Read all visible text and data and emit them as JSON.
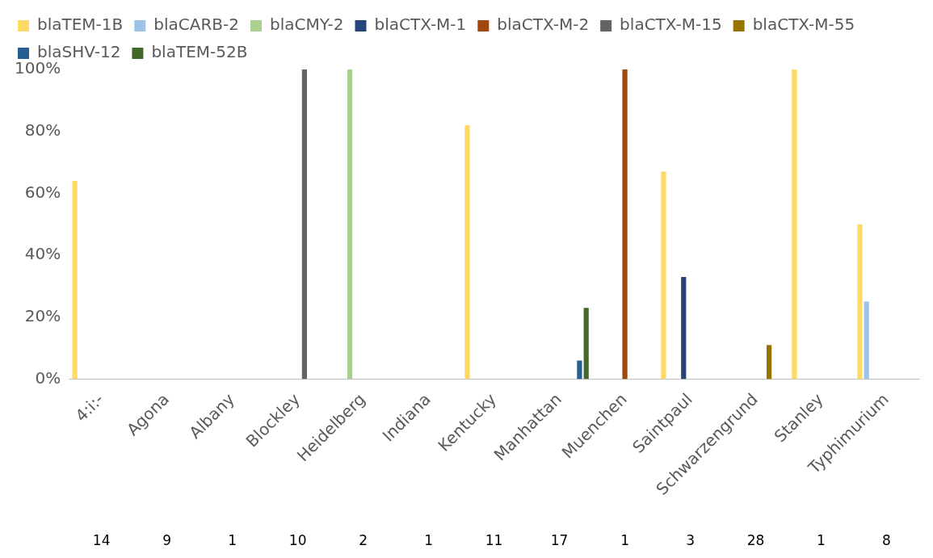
{
  "chart_data": {
    "type": "bar",
    "categories": [
      "4:i:-",
      "Agona",
      "Albany",
      "Blockley",
      "Heidelberg",
      "Indiana",
      "Kentucky",
      "Manhattan",
      "Muenchen",
      "Saintpaul",
      "Schwarzengrund",
      "Stanley",
      "Typhimurium"
    ],
    "series": [
      {
        "name": "blaTEM-1B",
        "color": "#ffd966",
        "values": [
          64,
          0,
          0,
          0,
          0,
          0,
          82,
          0,
          0,
          67,
          0,
          100,
          50
        ]
      },
      {
        "name": "blaCARB-2",
        "color": "#9dc3e6",
        "values": [
          0,
          0,
          0,
          0,
          0,
          0,
          0,
          0,
          0,
          0,
          0,
          0,
          25
        ]
      },
      {
        "name": "blaCMY-2",
        "color": "#a9d18e",
        "values": [
          0,
          0,
          0,
          0,
          100,
          0,
          0,
          0,
          0,
          0,
          0,
          0,
          0
        ]
      },
      {
        "name": "blaCTX-M-1",
        "color": "#264478",
        "values": [
          0,
          0,
          0,
          0,
          0,
          0,
          0,
          0,
          0,
          33,
          0,
          0,
          0
        ]
      },
      {
        "name": "blaCTX-M-2",
        "color": "#9e480e",
        "values": [
          0,
          0,
          0,
          0,
          0,
          0,
          0,
          0,
          100,
          0,
          0,
          0,
          0
        ]
      },
      {
        "name": "blaCTX-M-15",
        "color": "#636363",
        "values": [
          0,
          0,
          0,
          100,
          0,
          0,
          0,
          0,
          0,
          0,
          0,
          0,
          0
        ]
      },
      {
        "name": "blaCTX-M-55",
        "color": "#997300",
        "values": [
          0,
          0,
          0,
          0,
          0,
          0,
          0,
          0,
          0,
          0,
          11,
          0,
          0
        ]
      },
      {
        "name": "blaSHV-12",
        "color": "#255e91",
        "values": [
          0,
          0,
          0,
          0,
          0,
          0,
          0,
          6,
          0,
          0,
          0,
          0,
          0
        ]
      },
      {
        "name": "blaTEM-52B",
        "color": "#43682b",
        "values": [
          0,
          0,
          0,
          0,
          0,
          0,
          0,
          23,
          0,
          0,
          0,
          0,
          0
        ]
      }
    ],
    "ylim": [
      0,
      100
    ],
    "yticks": [
      {
        "value": 0,
        "label": "0%"
      },
      {
        "value": 20,
        "label": "20%"
      },
      {
        "value": 40,
        "label": "40%"
      },
      {
        "value": 60,
        "label": "60%"
      },
      {
        "value": 80,
        "label": "80%"
      },
      {
        "value": 100,
        "label": "100%"
      }
    ],
    "grid": false,
    "legend": "top",
    "annotations": [
      "14",
      "9",
      "1",
      "10",
      "2",
      "1",
      "11",
      "17",
      "1",
      "3",
      "28",
      "1",
      "8"
    ]
  }
}
